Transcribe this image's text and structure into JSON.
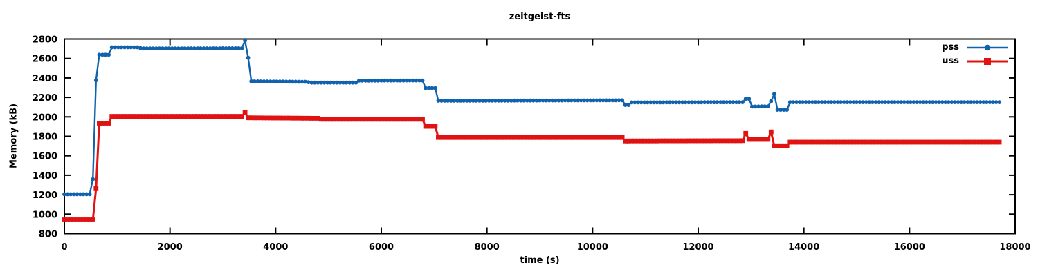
{
  "chart_data": {
    "type": "line",
    "title": "zeitgeist-fts",
    "xlabel": "time (s)",
    "ylabel": "Memory (kB)",
    "xlim": [
      0,
      18000
    ],
    "ylim": [
      800,
      2800
    ],
    "xticks": [
      0,
      2000,
      4000,
      6000,
      8000,
      10000,
      12000,
      14000,
      16000,
      18000
    ],
    "yticks": [
      800,
      1000,
      1200,
      1400,
      1600,
      1800,
      2000,
      2200,
      2400,
      2600,
      2800
    ],
    "grid": false,
    "legend_position": "top-right-inside",
    "sample_interval_s": 60,
    "series": [
      {
        "name": "pss",
        "color": "#1062ad",
        "marker": "circle",
        "points": [
          [
            0,
            1205
          ],
          [
            520,
            1205
          ],
          [
            570,
            1590
          ],
          [
            610,
            2638
          ],
          [
            880,
            2638
          ],
          [
            900,
            2715
          ],
          [
            1400,
            2715
          ],
          [
            1460,
            2703
          ],
          [
            3360,
            2705
          ],
          [
            3420,
            2782
          ],
          [
            3480,
            2608
          ],
          [
            3540,
            2365
          ],
          [
            4560,
            2360
          ],
          [
            4680,
            2352
          ],
          [
            5520,
            2352
          ],
          [
            5580,
            2372
          ],
          [
            6780,
            2374
          ],
          [
            6840,
            2296
          ],
          [
            7020,
            2296
          ],
          [
            7080,
            2165
          ],
          [
            10560,
            2170
          ],
          [
            10620,
            2122
          ],
          [
            10680,
            2122
          ],
          [
            10740,
            2148
          ],
          [
            12840,
            2150
          ],
          [
            12900,
            2185
          ],
          [
            12960,
            2185
          ],
          [
            13020,
            2105
          ],
          [
            13320,
            2108
          ],
          [
            13380,
            2160
          ],
          [
            13440,
            2235
          ],
          [
            13500,
            2072
          ],
          [
            13680,
            2072
          ],
          [
            13740,
            2150
          ],
          [
            17700,
            2150
          ]
        ]
      },
      {
        "name": "uss",
        "color": "#e01312",
        "marker": "square",
        "points": [
          [
            0,
            942
          ],
          [
            560,
            942
          ],
          [
            600,
            1262
          ],
          [
            640,
            1935
          ],
          [
            880,
            1935
          ],
          [
            900,
            2005
          ],
          [
            3360,
            2005
          ],
          [
            3420,
            2042
          ],
          [
            3480,
            1990
          ],
          [
            4800,
            1985
          ],
          [
            4860,
            1975
          ],
          [
            6780,
            1975
          ],
          [
            6840,
            1902
          ],
          [
            7020,
            1902
          ],
          [
            7080,
            1788
          ],
          [
            10560,
            1788
          ],
          [
            10620,
            1752
          ],
          [
            12840,
            1755
          ],
          [
            12900,
            1830
          ],
          [
            12960,
            1768
          ],
          [
            13320,
            1768
          ],
          [
            13380,
            1845
          ],
          [
            13440,
            1702
          ],
          [
            13680,
            1702
          ],
          [
            13740,
            1740
          ],
          [
            17700,
            1740
          ]
        ]
      }
    ]
  },
  "colors": {
    "background": "#ffffff",
    "axis": "#000000",
    "text": "#000000"
  }
}
